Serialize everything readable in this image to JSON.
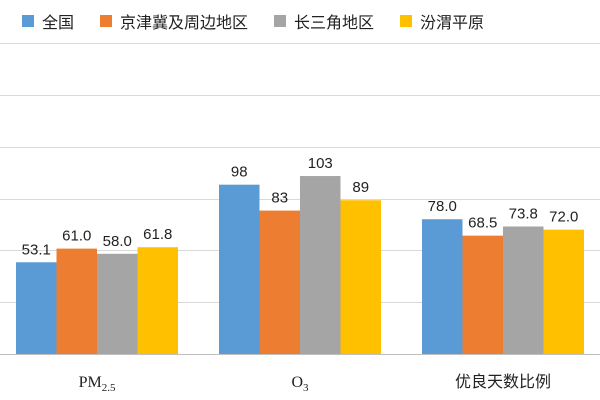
{
  "chart_data": {
    "type": "bar",
    "categories": [
      "PM2.5",
      "O3",
      "优良天数比例"
    ],
    "category_labels": [
      {
        "base": "PM",
        "sub": "2.5"
      },
      {
        "base": "O",
        "sub": "3"
      },
      {
        "base": "优良天数比例",
        "sub": ""
      }
    ],
    "series": [
      {
        "name": "全国",
        "color": "#5B9BD5",
        "values": [
          53.1,
          98,
          78.0
        ],
        "labels": [
          "53.1",
          "98",
          "78.0"
        ]
      },
      {
        "name": "京津冀及周边地区",
        "color": "#ED7D31",
        "values": [
          61.0,
          83,
          68.5
        ],
        "labels": [
          "61.0",
          "83",
          "68.5"
        ]
      },
      {
        "name": "长三角地区",
        "color": "#A5A5A5",
        "values": [
          58.0,
          103,
          73.8
        ],
        "labels": [
          "58.0",
          "103",
          "73.8"
        ]
      },
      {
        "name": "汾渭平原",
        "color": "#FFC000",
        "values": [
          61.8,
          89,
          72.0
        ],
        "labels": [
          "61.8",
          "89",
          "72.0"
        ]
      }
    ],
    "ylim": [
      0,
      180
    ],
    "grid": true,
    "legend": "top",
    "title": "",
    "xlabel": "",
    "ylabel": ""
  }
}
